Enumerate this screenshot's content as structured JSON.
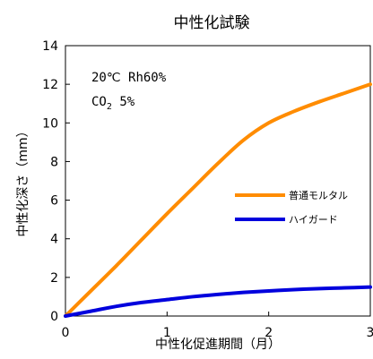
{
  "chart_data": {
    "type": "line",
    "title": "中性化試験",
    "xlabel": "中性化促進期間（月）",
    "ylabel": "中性化深さ（mm）",
    "xlim": [
      0,
      3
    ],
    "ylim": [
      0,
      14
    ],
    "x_ticks": [
      "0",
      "1",
      "2",
      "3"
    ],
    "y_ticks": [
      "0",
      "2",
      "4",
      "6",
      "8",
      "10",
      "12",
      "14"
    ],
    "grid": false,
    "legend_position": "right-middle",
    "annotations": {
      "line1": "20℃ Rh60%",
      "line2_prefix": "CO",
      "line2_sub": "2",
      "line2_suffix": " 5%"
    },
    "series": [
      {
        "name": "普通モルタル",
        "color": "#ff8c00",
        "x": [
          0,
          0.25,
          0.5,
          0.75,
          1.0,
          1.25,
          1.5,
          1.75,
          2.0,
          2.25,
          2.5,
          2.75,
          3.0
        ],
        "y": [
          0,
          1.3,
          2.6,
          3.95,
          5.3,
          6.6,
          7.9,
          9.1,
          10.0,
          10.6,
          11.1,
          11.55,
          12.0
        ]
      },
      {
        "name": "ハイガード",
        "color": "#0000dd",
        "x": [
          0,
          0.25,
          0.5,
          0.75,
          1.0,
          1.25,
          1.5,
          1.75,
          2.0,
          2.25,
          2.5,
          2.75,
          3.0
        ],
        "y": [
          0,
          0.25,
          0.5,
          0.7,
          0.85,
          1.0,
          1.12,
          1.22,
          1.3,
          1.37,
          1.42,
          1.46,
          1.5
        ]
      }
    ]
  }
}
